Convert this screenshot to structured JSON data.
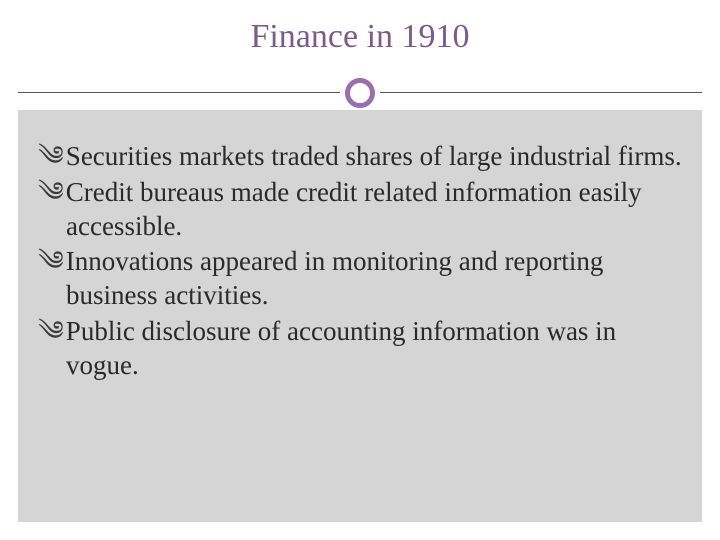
{
  "slide": {
    "title": "Finance in 1910",
    "title_color": "#7d5a8c",
    "title_fontsize": 34,
    "divider": {
      "line_color": "#555555",
      "circle_border_color": "#9b6fad",
      "circle_border_width": 5,
      "circle_diameter": 30
    },
    "content_background": "#d5d5d5",
    "bullet_glyph": "༄",
    "bullets": [
      "Securities markets traded shares of large industrial firms.",
      "Credit bureaus made credit related information easily accessible.",
      "Innovations appeared in monitoring and reporting business activities.",
      "Public disclosure of accounting information was in vogue."
    ],
    "bullet_fontsize": 27,
    "bullet_color": "#2a2a2a"
  }
}
